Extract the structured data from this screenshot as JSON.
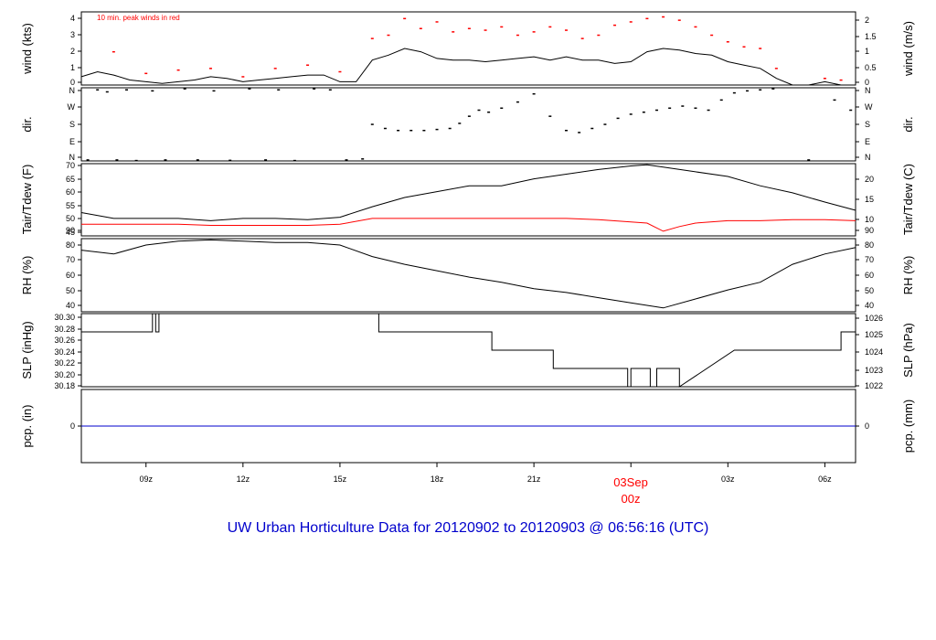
{
  "title": "UW Urban Horticulture Data for 20120902  to  20120903 @ 06:56:16  (UTC)",
  "colors": {
    "series": "#000000",
    "dew": "#ff0000",
    "peak": "#ff0000",
    "precip": "#0000cc",
    "title": "#0000cc",
    "date_marker": "#ff0000"
  },
  "x_axis": {
    "ticks": [
      "09z",
      "12z",
      "15z",
      "18z",
      "21z",
      "00z",
      "03z",
      "06z"
    ],
    "tick_hours": [
      9,
      12,
      15,
      18,
      21,
      24,
      27,
      30
    ],
    "range_hours": [
      7.0,
      30.95
    ],
    "date_label": "03Sep",
    "date_label_sub": "00z"
  },
  "panels": [
    {
      "id": "wind",
      "label_left": "wind (kts)",
      "label_right": "wind (m/s)",
      "left_ticks": [
        "0",
        "1",
        "2",
        "3",
        "4"
      ],
      "right_ticks": [
        "0",
        "0.5",
        "1",
        "1.5",
        "2"
      ],
      "note": "10 min. peak winds in red"
    },
    {
      "id": "dir",
      "label_left": "dir.",
      "label_right": "dir.",
      "left_ticks": [
        "N",
        "E",
        "S",
        "W",
        "N"
      ],
      "right_ticks": [
        "N",
        "E",
        "S",
        "W",
        "N"
      ]
    },
    {
      "id": "temp",
      "label_left": "Tair/Tdew (F)",
      "label_right": "Tair/Tdew (C)",
      "left_ticks": [
        "45",
        "50",
        "55",
        "60",
        "65",
        "70"
      ],
      "right_ticks": [
        "10",
        "15",
        "20"
      ]
    },
    {
      "id": "rh",
      "label_left": "RH (%)",
      "label_right": "RH (%)",
      "left_ticks": [
        "40",
        "50",
        "60",
        "70",
        "80",
        "90"
      ],
      "right_ticks": [
        "40",
        "50",
        "60",
        "70",
        "80",
        "90"
      ]
    },
    {
      "id": "slp",
      "label_left": "SLP (inHg)",
      "label_right": "SLP (hPa)",
      "left_ticks": [
        "30.18",
        "30.20",
        "30.22",
        "30.24",
        "30.26",
        "30.28",
        "30.30"
      ],
      "right_ticks": [
        "1022",
        "1023",
        "1024",
        "1025",
        "1026"
      ]
    },
    {
      "id": "pcp",
      "label_left": "pcp. (in)",
      "label_right": "pcp. (mm)",
      "left_ticks": [
        "0"
      ],
      "right_ticks": [
        "0"
      ]
    }
  ],
  "chart_data": [
    {
      "type": "line",
      "panel": "wind",
      "ylabel": "wind (kts)",
      "ylim": [
        0,
        4.4
      ],
      "series": [
        {
          "name": "wind",
          "x": [
            7.0,
            7.5,
            8.0,
            8.5,
            9.0,
            9.5,
            10.0,
            10.5,
            11.0,
            11.5,
            12.0,
            12.5,
            13.0,
            13.5,
            14.0,
            14.5,
            15.0,
            15.5,
            16.0,
            16.5,
            17.0,
            17.5,
            18.0,
            18.5,
            19.0,
            19.5,
            20.0,
            20.5,
            21.0,
            21.5,
            22.0,
            22.5,
            23.0,
            23.5,
            24.0,
            24.5,
            25.0,
            25.5,
            26.0,
            26.5,
            27.0,
            27.5,
            28.0,
            28.5,
            29.0,
            29.5,
            30.0,
            30.5,
            30.95
          ],
          "y": [
            0.5,
            0.8,
            0.6,
            0.3,
            0.2,
            0.1,
            0.2,
            0.3,
            0.5,
            0.4,
            0.2,
            0.3,
            0.4,
            0.5,
            0.6,
            0.6,
            0.2,
            0.2,
            1.5,
            1.8,
            2.2,
            2.0,
            1.6,
            1.5,
            1.5,
            1.4,
            1.5,
            1.6,
            1.7,
            1.5,
            1.7,
            1.5,
            1.5,
            1.3,
            1.4,
            2.0,
            2.2,
            2.1,
            1.9,
            1.8,
            1.4,
            1.2,
            1.0,
            0.4,
            0.0,
            0.0,
            0.2,
            0.0,
            0.0
          ]
        },
        {
          "name": "10 min. peak winds in red",
          "x": [
            8.0,
            9.0,
            10.0,
            11.0,
            12.0,
            13.0,
            14.0,
            15.0,
            16.0,
            16.5,
            17.0,
            17.5,
            18.0,
            18.5,
            19.0,
            19.5,
            20.0,
            20.5,
            21.0,
            21.5,
            22.0,
            22.5,
            23.0,
            23.5,
            24.0,
            24.5,
            25.0,
            25.5,
            26.0,
            26.5,
            27.0,
            27.5,
            28.0,
            28.5,
            30.0,
            30.5
          ],
          "y": [
            2.0,
            0.7,
            0.9,
            1.0,
            0.5,
            1.0,
            1.2,
            0.8,
            2.8,
            3.0,
            4.0,
            3.4,
            3.8,
            3.2,
            3.4,
            3.3,
            3.5,
            3.0,
            3.2,
            3.5,
            3.3,
            2.8,
            3.0,
            3.6,
            3.8,
            4.0,
            4.1,
            3.9,
            3.5,
            3.0,
            2.6,
            2.3,
            2.2,
            1.0,
            0.4,
            0.3
          ]
        }
      ]
    },
    {
      "type": "scatter",
      "panel": "dir",
      "ylabel": "dir.",
      "ylim": [
        0,
        360
      ],
      "series": [
        {
          "name": "dir",
          "x": [
            7.2,
            7.5,
            7.8,
            8.1,
            8.4,
            8.7,
            9.2,
            9.6,
            10.2,
            10.6,
            11.1,
            11.6,
            12.2,
            12.7,
            13.1,
            13.6,
            14.2,
            14.7,
            15.2,
            15.7,
            16.0,
            16.4,
            16.8,
            17.2,
            17.6,
            18.0,
            18.4,
            18.7,
            19.0,
            19.3,
            19.6,
            20.0,
            20.5,
            21.0,
            21.5,
            22.0,
            22.4,
            22.8,
            23.2,
            23.6,
            24.0,
            24.4,
            24.8,
            25.2,
            25.6,
            26.0,
            26.4,
            26.8,
            27.2,
            27.6,
            28.0,
            28.4,
            29.5,
            30.3,
            30.8
          ],
          "y": [
            5,
            350,
            340,
            5,
            350,
            2,
            345,
            5,
            355,
            5,
            345,
            3,
            355,
            5,
            350,
            2,
            355,
            350,
            5,
            10,
            180,
            160,
            150,
            150,
            150,
            155,
            160,
            185,
            220,
            250,
            240,
            260,
            290,
            330,
            220,
            150,
            140,
            160,
            180,
            210,
            230,
            240,
            250,
            260,
            270,
            260,
            250,
            300,
            335,
            345,
            350,
            355,
            5,
            300,
            250
          ]
        }
      ]
    },
    {
      "type": "line",
      "panel": "temp",
      "ylabel": "Tair/Tdew (F)",
      "ylim": [
        43,
        74
      ],
      "series": [
        {
          "name": "Tair",
          "x": [
            7.0,
            8.0,
            9.0,
            10.0,
            11.0,
            12.0,
            13.0,
            14.0,
            15.0,
            16.0,
            17.0,
            18.0,
            19.0,
            20.0,
            21.0,
            22.0,
            23.0,
            24.0,
            24.5,
            25.0,
            26.0,
            27.0,
            28.0,
            29.0,
            30.0,
            30.95
          ],
          "y": [
            53,
            50.5,
            50.5,
            50.5,
            49.5,
            50.5,
            50.5,
            50,
            51,
            55.5,
            59.5,
            62,
            64.5,
            64.5,
            67.5,
            69.5,
            71.5,
            73,
            73.5,
            72.5,
            70.5,
            68.5,
            64.5,
            61.5,
            57.5,
            54
          ]
        },
        {
          "name": "Tdew",
          "x": [
            7.0,
            8.0,
            9.0,
            10.0,
            11.0,
            12.0,
            13.0,
            14.0,
            15.0,
            16.0,
            17.0,
            18.0,
            19.0,
            20.0,
            21.0,
            22.0,
            23.0,
            24.0,
            24.5,
            25.0,
            25.5,
            26.0,
            27.0,
            28.0,
            29.0,
            30.0,
            30.95
          ],
          "y": [
            48,
            48,
            48,
            48,
            47.5,
            47.5,
            47.5,
            47.5,
            48,
            50.5,
            50.5,
            50.5,
            50.5,
            50.5,
            50.5,
            50.5,
            50,
            49,
            48.5,
            45,
            47,
            48.5,
            49.5,
            49.5,
            50,
            50,
            49.5
          ]
        }
      ]
    },
    {
      "type": "line",
      "panel": "rh",
      "ylabel": "RH (%)",
      "ylim": [
        35,
        92
      ],
      "series": [
        {
          "name": "RH",
          "x": [
            7.0,
            8.0,
            9.0,
            10.0,
            11.0,
            12.0,
            13.0,
            14.0,
            15.0,
            16.0,
            17.0,
            18.0,
            19.0,
            20.0,
            21.0,
            22.0,
            23.0,
            24.0,
            24.5,
            25.0,
            26.0,
            27.0,
            28.0,
            29.0,
            30.0,
            30.95
          ],
          "y": [
            83,
            80,
            87,
            90,
            91,
            90,
            89,
            89,
            87,
            78,
            72,
            67,
            62,
            58,
            53,
            50,
            46,
            42,
            40,
            38,
            45,
            52,
            58,
            72,
            80,
            85
          ]
        }
      ]
    },
    {
      "type": "line",
      "panel": "slp",
      "ylabel": "SLP (inHg)",
      "ylim": [
        30.18,
        30.3
      ],
      "series": [
        {
          "name": "SLP",
          "x": [
            7.0,
            9.2,
            9.2,
            9.3,
            9.3,
            9.4,
            9.4,
            16.2,
            16.2,
            19.7,
            19.7,
            21.6,
            21.6,
            23.9,
            23.9,
            24.0,
            24.0,
            24.6,
            24.6,
            24.8,
            24.8,
            25.5,
            25.5,
            27.2,
            27.2,
            30.5,
            30.5,
            30.95
          ],
          "y": [
            30.27,
            30.27,
            30.3,
            30.3,
            30.27,
            30.27,
            30.3,
            30.3,
            30.27,
            30.27,
            30.24,
            30.24,
            30.21,
            30.21,
            30.18,
            30.18,
            30.21,
            30.21,
            30.18,
            30.18,
            30.21,
            30.21,
            30.18,
            30.24,
            30.24,
            30.24,
            30.27,
            30.27
          ]
        }
      ]
    },
    {
      "type": "line",
      "panel": "pcp",
      "ylabel": "pcp. (in)",
      "ylim": [
        -1,
        1
      ],
      "series": [
        {
          "name": "pcp",
          "x": [
            7.0,
            30.95
          ],
          "y": [
            0,
            0
          ]
        }
      ]
    }
  ]
}
